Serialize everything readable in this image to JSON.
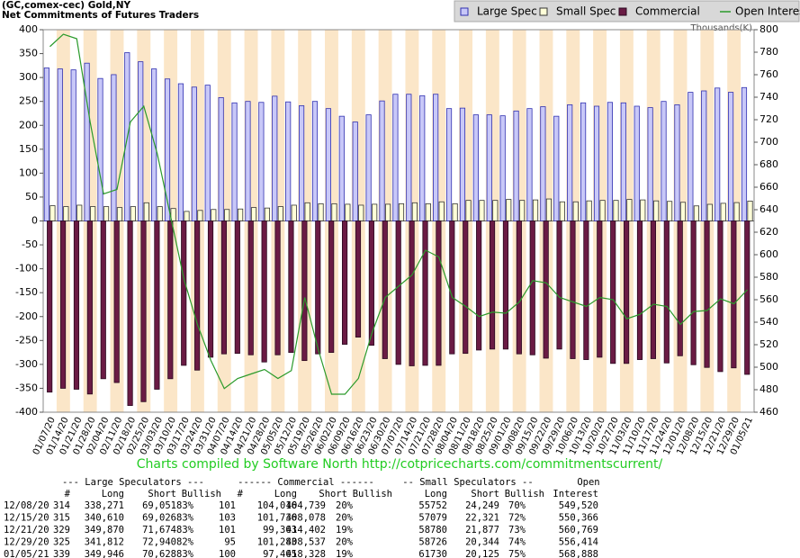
{
  "chart_data": {
    "type": "bar_line",
    "title": "(GC,comex-cec) Gold,NY",
    "subtitle": "Net Commitments of Futures Traders",
    "y2_label": "Thousands(K)",
    "footer": "Charts compiled by Software North  http://cotpricecharts.com/commitmentscurrent/",
    "categories": [
      "01/07/20",
      "01/14/20",
      "01/21/20",
      "01/28/20",
      "02/04/20",
      "02/11/20",
      "02/18/20",
      "02/25/20",
      "03/03/20",
      "03/10/20",
      "03/17/20",
      "03/24/20",
      "03/31/20",
      "04/07/20",
      "04/14/20",
      "04/21/20",
      "04/28/20",
      "05/05/20",
      "05/12/20",
      "05/19/20",
      "05/26/20",
      "06/02/20",
      "06/09/20",
      "06/16/20",
      "06/23/20",
      "06/30/20",
      "07/07/20",
      "07/14/20",
      "07/21/20",
      "07/28/20",
      "08/04/20",
      "08/11/20",
      "08/18/20",
      "08/25/20",
      "09/01/20",
      "09/08/20",
      "09/15/20",
      "09/22/20",
      "09/29/20",
      "10/06/20",
      "10/13/20",
      "10/20/20",
      "10/27/20",
      "11/03/20",
      "11/10/20",
      "11/17/20",
      "11/24/20",
      "12/01/20",
      "12/08/20",
      "12/15/20",
      "12/21/20",
      "12/29/20",
      "01/05/21"
    ],
    "series": [
      {
        "name": "Large Spec",
        "color": "#c8c8f8",
        "values": [
          320,
          318,
          316,
          330,
          298,
          306,
          352,
          333,
          318,
          297,
          287,
          280,
          284,
          258,
          247,
          250,
          248,
          261,
          249,
          241,
          250,
          235,
          219,
          207,
          222,
          251,
          265,
          265,
          262,
          265,
          235,
          236,
          222,
          222,
          220,
          230,
          235,
          239,
          219,
          243,
          247,
          240,
          248,
          247,
          240,
          237,
          250,
          243,
          269,
          272,
          278,
          269,
          279
        ]
      },
      {
        "name": "Small Spec",
        "color": "#ffffd8",
        "values": [
          32,
          30,
          33,
          30,
          30,
          28,
          30,
          38,
          30,
          26,
          20,
          22,
          24,
          24,
          25,
          28,
          27,
          30,
          33,
          38,
          36,
          36,
          35,
          33,
          35,
          35,
          36,
          38,
          36,
          40,
          36,
          43,
          43,
          43,
          45,
          43,
          44,
          46,
          40,
          40,
          42,
          43,
          43,
          45,
          44,
          42,
          41,
          39,
          31.5,
          34.8,
          36.9,
          38.4,
          41.6
        ]
      },
      {
        "name": "Commercial",
        "color": "#6a1b44",
        "values": [
          -358,
          -350,
          -352,
          -362,
          -330,
          -338,
          -386,
          -378,
          -352,
          -330,
          -302,
          -312,
          -285,
          -278,
          -277,
          -280,
          -295,
          -280,
          -275,
          -292,
          -278,
          -275,
          -258,
          -243,
          -260,
          -288,
          -300,
          -303,
          -302,
          -302,
          -278,
          -277,
          -270,
          -268,
          -268,
          -278,
          -280,
          -287,
          -268,
          -288,
          -290,
          -285,
          -298,
          -298,
          -290,
          -288,
          -297,
          -282,
          -300.7,
          -306.3,
          -315.1,
          -307.3,
          -320.9
        ]
      },
      {
        "name": "Open Interest",
        "color": "#2a9a2a",
        "axis": "y2",
        "values": [
          785,
          796,
          792,
          718,
          654,
          658,
          718,
          732,
          690,
          634,
          578,
          538,
          506,
          481,
          490,
          494,
          498,
          490,
          497,
          562,
          516,
          476,
          476,
          490,
          530,
          562,
          572,
          582,
          604,
          598,
          562,
          554,
          545,
          549,
          548,
          558,
          577,
          575,
          562,
          558,
          554,
          562,
          560,
          543,
          547,
          556,
          554,
          538,
          549.5,
          550.4,
          560.8,
          556.4,
          568.9
        ]
      }
    ],
    "ylim": [
      -400,
      400
    ],
    "yticks": [
      -400,
      -350,
      -300,
      -250,
      -200,
      -150,
      -100,
      -50,
      0,
      50,
      100,
      150,
      200,
      250,
      300,
      350,
      400
    ],
    "y2lim": [
      460,
      800
    ],
    "y2ticks": [
      460,
      480,
      500,
      520,
      540,
      560,
      580,
      600,
      620,
      640,
      660,
      680,
      700,
      720,
      740,
      760,
      780,
      800
    ],
    "stripe_color": "#fbe6c8"
  },
  "table": {
    "groups": [
      "--- Large Speculators ---",
      "------ Commercial ------",
      "-- Small Speculators --",
      "Open"
    ],
    "columns": [
      "#",
      "Long",
      "Short",
      "Bullish",
      "#",
      "Long",
      "Short",
      "Bullish",
      "Long",
      "Short",
      "Bullish",
      "Interest"
    ],
    "rows": [
      [
        "12/08/20",
        "314",
        "338,271",
        "69,051",
        "83%",
        "101",
        "104,016",
        "404,739",
        "20%",
        "55752",
        "24,249",
        "70%",
        "549,520"
      ],
      [
        "12/15/20",
        "315",
        "340,610",
        "69,026",
        "83%",
        "103",
        "101,736",
        "408,078",
        "20%",
        "57079",
        "22,321",
        "72%",
        "550,366"
      ],
      [
        "12/21/20",
        "329",
        "349,870",
        "71,674",
        "83%",
        "101",
        "99,303",
        "414,402",
        "19%",
        "58780",
        "21,877",
        "73%",
        "560,769"
      ],
      [
        "12/29/20",
        "325",
        "341,812",
        "72,940",
        "82%",
        "95",
        "101,283",
        "408,537",
        "20%",
        "58726",
        "20,344",
        "74%",
        "556,414"
      ],
      [
        "01/05/21",
        "339",
        "349,946",
        "70,628",
        "83%",
        "100",
        "97,405",
        "418,328",
        "19%",
        "61730",
        "20,125",
        "75%",
        "568,888"
      ]
    ]
  }
}
